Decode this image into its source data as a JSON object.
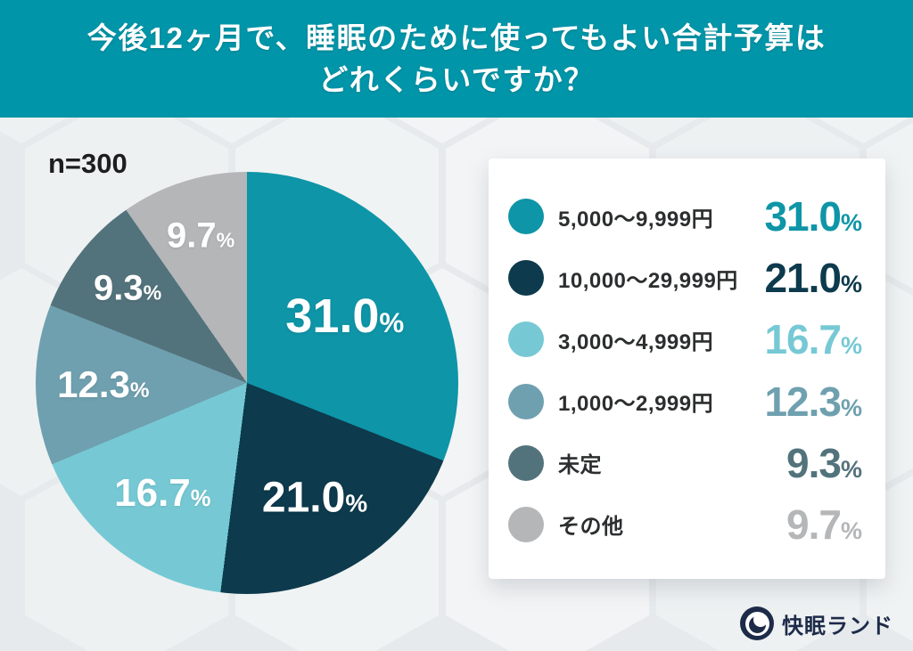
{
  "header": {
    "title_line1": "今後12ヶ月で、睡眠のために使ってもよい合計予算は",
    "title_line2": "どれくらいですか？",
    "bg_color": "#0095a8"
  },
  "sample_size_label": "n=300",
  "chart_data": {
    "type": "pie",
    "title": "今後12ヶ月で、睡眠のために使ってもよい合計予算はどれくらいですか？",
    "sample_size": 300,
    "start_angle_deg": 0,
    "direction": "clockwise",
    "legend_position": "right",
    "percent_suffix": "%",
    "segments": [
      {
        "label": "5,000〜9,999円",
        "value": 31.0,
        "display": "31.0",
        "color": "#0e95a7"
      },
      {
        "label": "10,000〜29,999円",
        "value": 21.0,
        "display": "21.0",
        "color": "#0d3a4d"
      },
      {
        "label": "3,000〜4,999円",
        "value": 16.7,
        "display": "16.7",
        "color": "#76c9d4"
      },
      {
        "label": "1,000〜2,999円",
        "value": 12.3,
        "display": "12.3",
        "color": "#6fa0af"
      },
      {
        "label": "未定",
        "value": 9.3,
        "display": "9.3",
        "color": "#53737c"
      },
      {
        "label": "その他",
        "value": 9.7,
        "display": "9.7",
        "color": "#b4b6b8"
      }
    ]
  },
  "footer": {
    "logo_text": "快眠ランド",
    "logo_color": "#1d2b49"
  }
}
